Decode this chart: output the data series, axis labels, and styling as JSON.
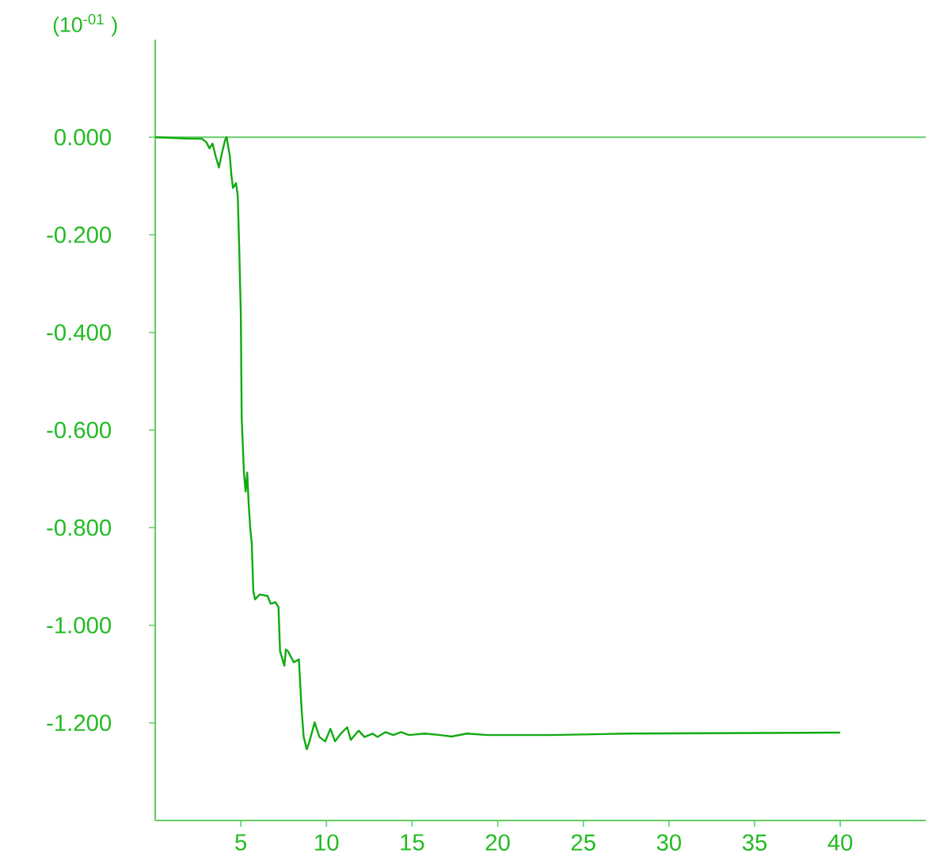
{
  "chart_data": {
    "type": "line",
    "ylabel": "(10$^{-01}$ )",
    "xlim": [
      0,
      45
    ],
    "xticks": [
      5,
      10,
      15,
      20,
      25,
      30,
      35,
      40
    ],
    "ylim": [
      -1.4,
      0.2
    ],
    "yticks": [
      {
        "value": 0,
        "label": "0.000"
      },
      {
        "value": -0.2,
        "label": "-0.200"
      },
      {
        "value": -0.4,
        "label": "-0.400"
      },
      {
        "value": -0.6,
        "label": "-0.600"
      },
      {
        "value": -0.8,
        "label": "-0.800"
      },
      {
        "value": -1.0,
        "label": "-1.000"
      },
      {
        "value": -1.2,
        "label": "-1.200"
      }
    ],
    "ref_lines": [
      {
        "axis": "y",
        "value": 0,
        "label": null,
        "color": "#66cc66"
      }
    ],
    "grid": false,
    "marker": "none",
    "line_style": "solid",
    "series": [
      {
        "color": "#11aa11",
        "x": [
          0,
          1.97,
          2.71,
          2.98,
          3.17,
          3.35,
          3.53,
          3.72,
          3.9,
          4.08,
          4.17,
          4.36,
          4.45,
          4.54,
          4.72,
          4.82,
          4.91,
          5.0,
          5.05,
          5.18,
          5.28,
          5.37,
          5.46,
          5.55,
          5.64,
          5.73,
          5.83,
          6.1,
          6.56,
          6.74,
          7.02,
          7.2,
          7.29,
          7.54,
          7.63,
          7.75,
          8.09,
          8.39,
          8.55,
          8.67,
          8.85,
          9.01,
          9.31,
          9.59,
          9.93,
          10.23,
          10.5,
          10.84,
          11.21,
          11.42,
          11.88,
          12.22,
          12.68,
          12.98,
          13.44,
          13.9,
          14.36,
          14.82,
          15.73,
          16.65,
          17.3,
          18.2,
          19.4,
          23.07,
          27.66,
          40
        ],
        "values": [
          0,
          -0.003,
          -0.003,
          -0.01,
          -0.023,
          -0.013,
          -0.039,
          -0.062,
          -0.032,
          -0.006,
          0.0,
          -0.039,
          -0.078,
          -0.104,
          -0.094,
          -0.12,
          -0.233,
          -0.363,
          -0.574,
          -0.687,
          -0.726,
          -0.687,
          -0.752,
          -0.801,
          -0.833,
          -0.93,
          -0.947,
          -0.937,
          -0.94,
          -0.956,
          -0.953,
          -0.963,
          -1.053,
          -1.083,
          -1.05,
          -1.053,
          -1.076,
          -1.07,
          -1.173,
          -1.229,
          -1.254,
          -1.238,
          -1.199,
          -1.229,
          -1.238,
          -1.212,
          -1.238,
          -1.222,
          -1.209,
          -1.235,
          -1.216,
          -1.229,
          -1.222,
          -1.229,
          -1.219,
          -1.225,
          -1.219,
          -1.225,
          -1.222,
          -1.225,
          -1.228,
          -1.222,
          -1.225,
          -1.225,
          -1.222,
          -1.22
        ]
      }
    ]
  }
}
